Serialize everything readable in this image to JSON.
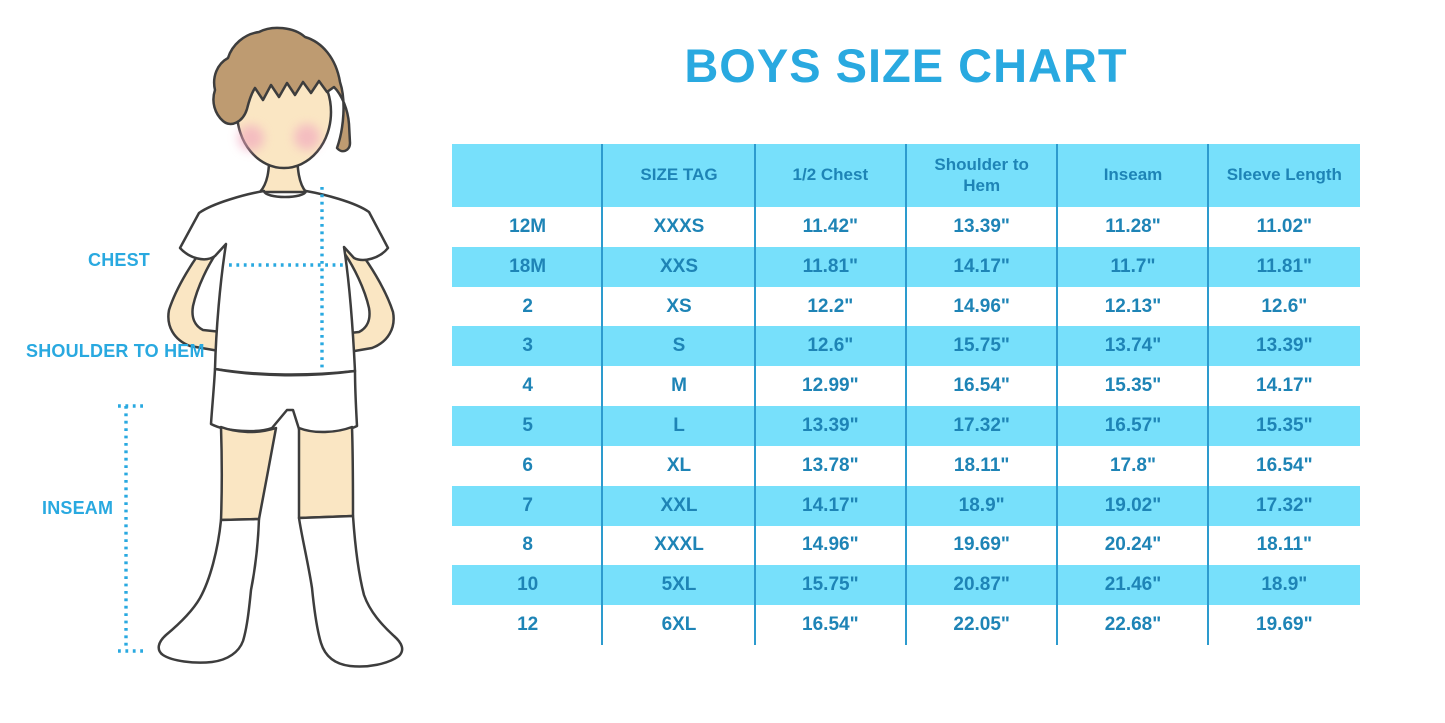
{
  "title": "BOYS SIZE CHART",
  "figure_labels": {
    "chest": "CHEST",
    "shoulder_to_hem": "SHOULDER TO HEM",
    "inseam": "INSEAM"
  },
  "colors": {
    "accent": "#29a9e0",
    "band": "#77e0fb",
    "table_text": "#1e84b6",
    "divider": "#2d9bce",
    "hair": "#be9b71",
    "skin": "#fae6c3",
    "cheek": "#f1a7bf",
    "outline": "#3d3d3d"
  },
  "chart_data": {
    "type": "table",
    "title": "BOYS SIZE CHART",
    "columns": [
      "",
      "SIZE TAG",
      "1/2 Chest",
      "Shoulder to Hem",
      "Inseam",
      "Sleeve Length"
    ],
    "rows": [
      [
        "12M",
        "XXXS",
        "11.42\"",
        "13.39\"",
        "11.28\"",
        "11.02\""
      ],
      [
        "18M",
        "XXS",
        "11.81\"",
        "14.17\"",
        "11.7\"",
        "11.81\""
      ],
      [
        "2",
        "XS",
        "12.2\"",
        "14.96\"",
        "12.13\"",
        "12.6\""
      ],
      [
        "3",
        "S",
        "12.6\"",
        "15.75\"",
        "13.74\"",
        "13.39\""
      ],
      [
        "4",
        "M",
        "12.99\"",
        "16.54\"",
        "15.35\"",
        "14.17\""
      ],
      [
        "5",
        "L",
        "13.39\"",
        "17.32\"",
        "16.57\"",
        "15.35\""
      ],
      [
        "6",
        "XL",
        "13.78\"",
        "18.11\"",
        "17.8\"",
        "16.54\""
      ],
      [
        "7",
        "XXL",
        "14.17\"",
        "18.9\"",
        "19.02\"",
        "17.32\""
      ],
      [
        "8",
        "XXXL",
        "14.96\"",
        "19.69\"",
        "20.24\"",
        "18.11\""
      ],
      [
        "10",
        "5XL",
        "15.75\"",
        "20.87\"",
        "21.46\"",
        "18.9\""
      ],
      [
        "12",
        "6XL",
        "16.54\"",
        "22.05\"",
        "22.68\"",
        "19.69\""
      ]
    ]
  }
}
